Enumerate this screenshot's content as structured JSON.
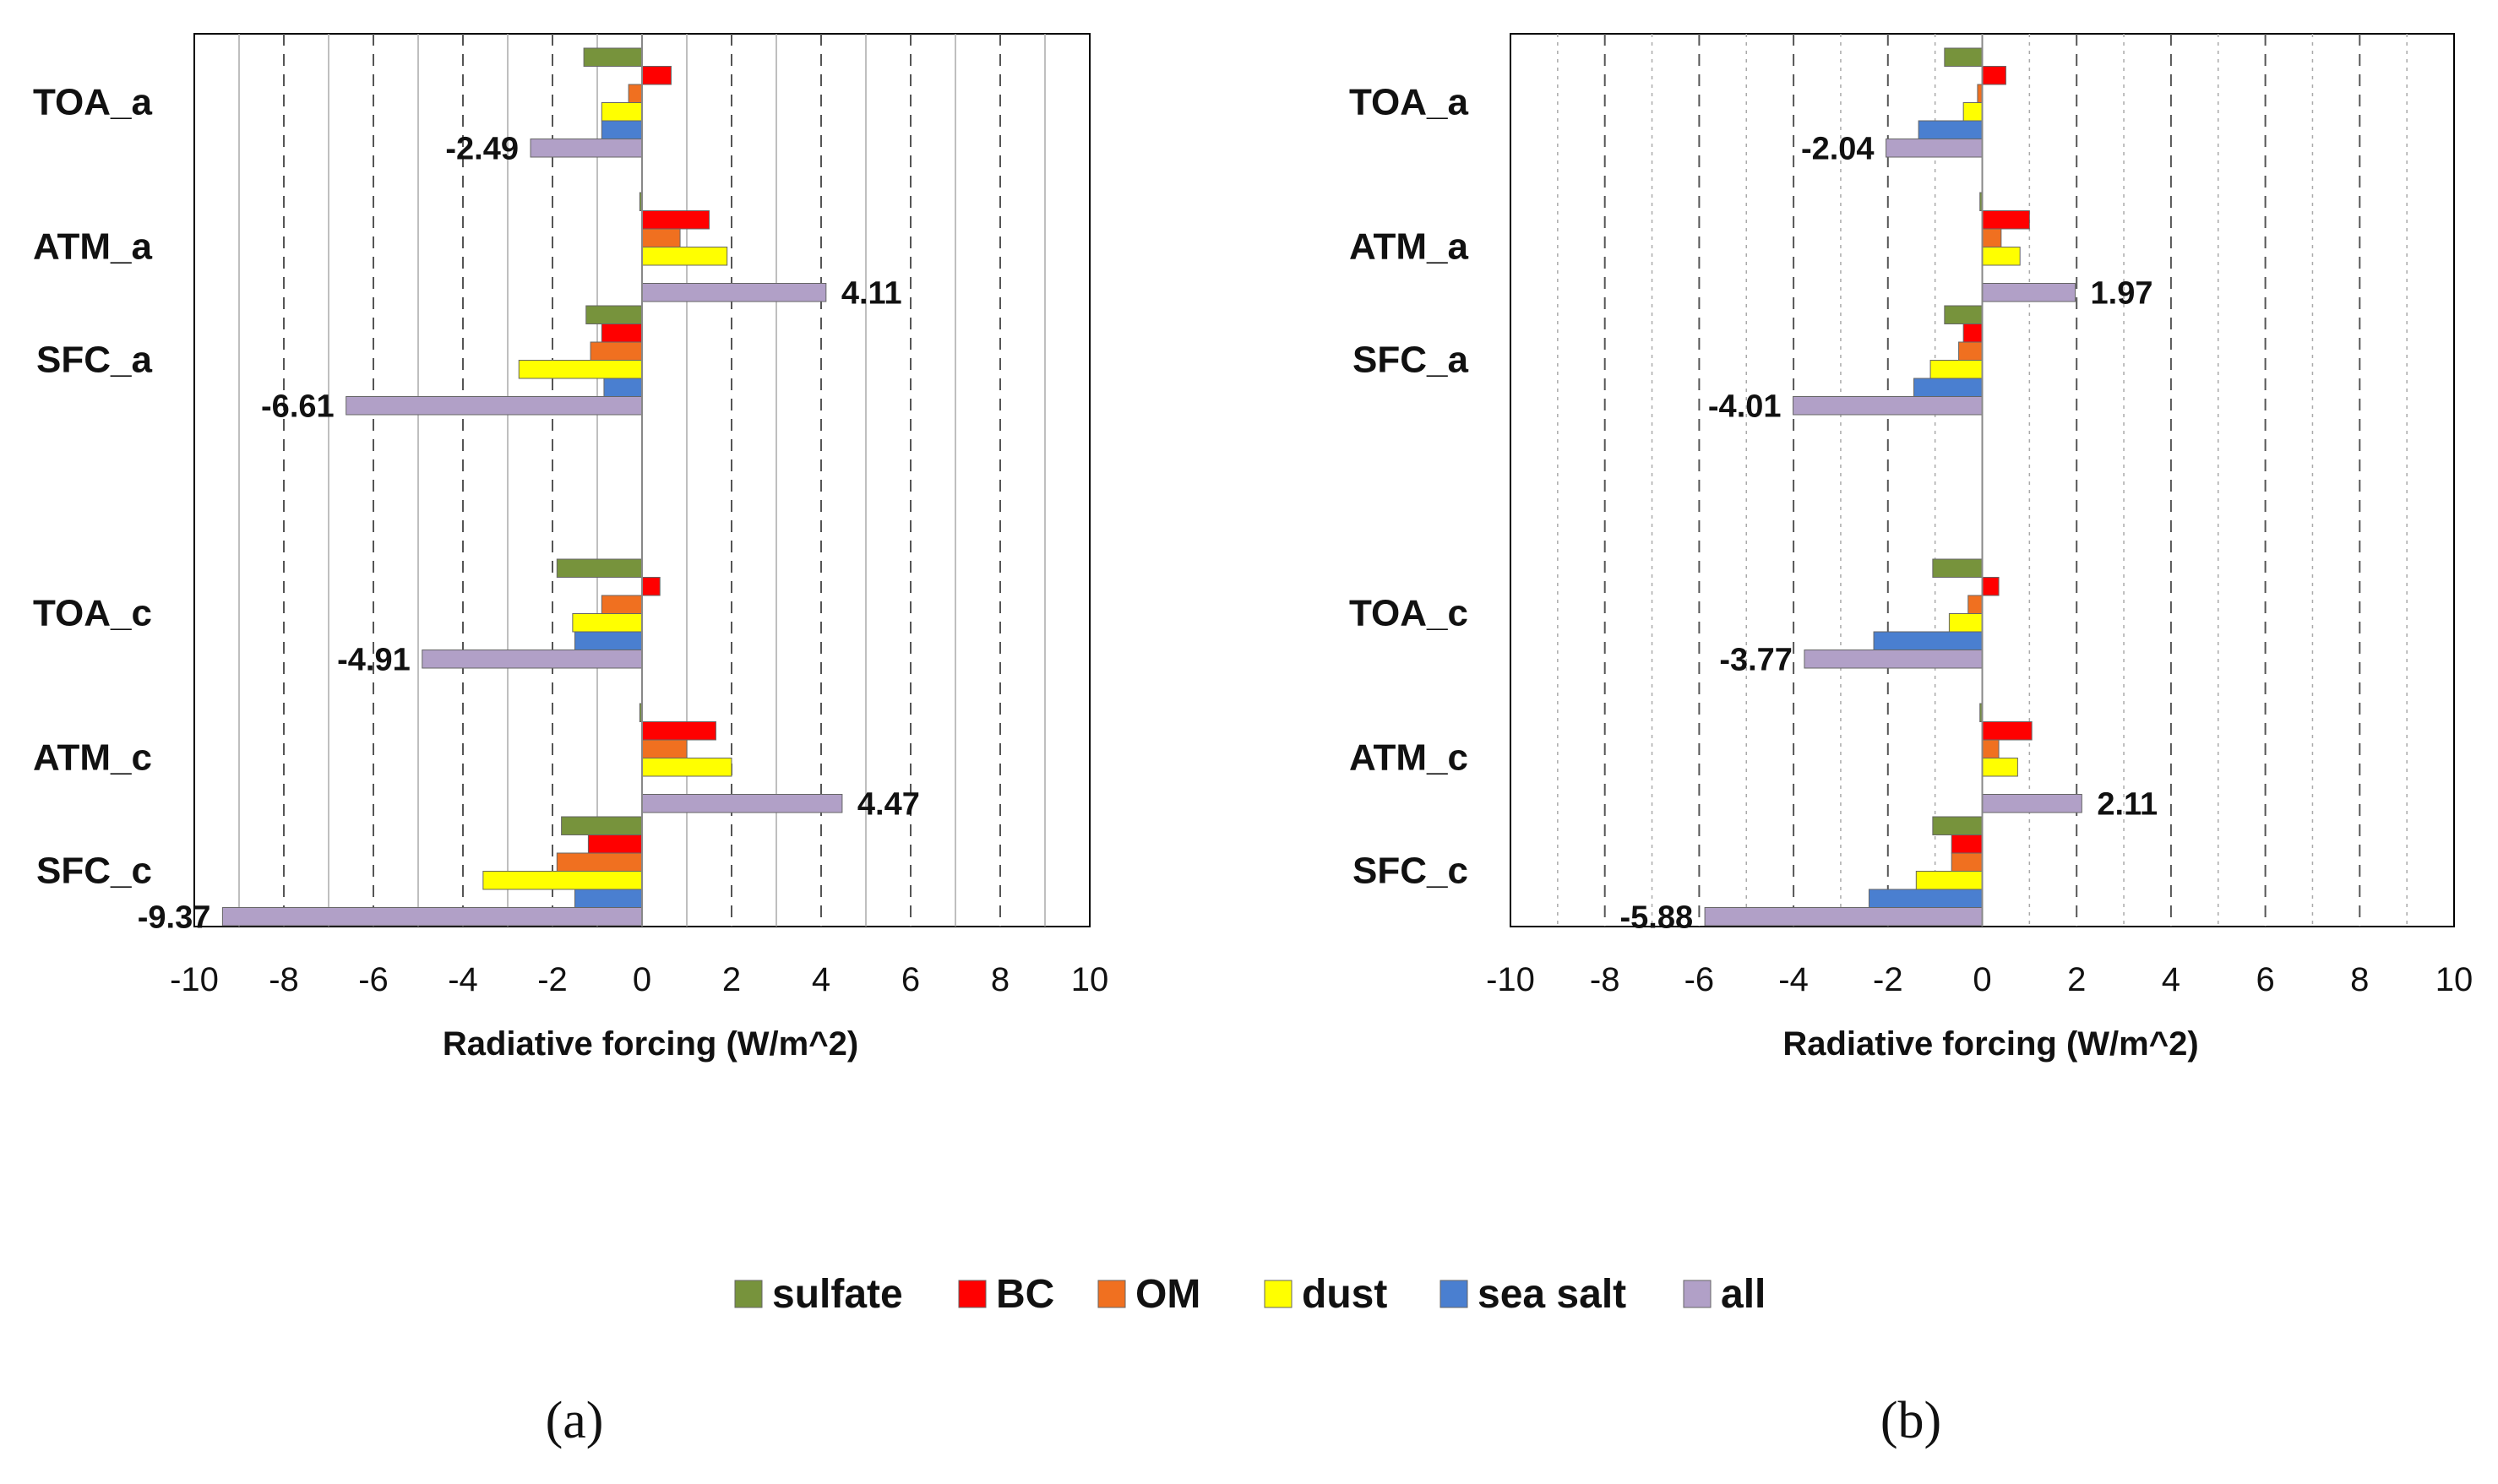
{
  "chart_data": [
    {
      "panel": "a",
      "type": "bar",
      "orientation": "horizontal",
      "categories": [
        "TOA_a",
        "ATM_a",
        "SFC_a",
        "TOA_c",
        "ATM_c",
        "SFC_c"
      ],
      "xlabel": "Radiative forcing (W/m^2)",
      "xlim": [
        -10,
        10
      ],
      "xticks": [
        -10,
        -8,
        -6,
        -4,
        -2,
        0,
        2,
        4,
        6,
        8,
        10
      ],
      "series": [
        {
          "name": "sulfate",
          "values": [
            -1.3,
            -0.05,
            -1.25,
            -1.9,
            -0.05,
            -1.8
          ]
        },
        {
          "name": "BC",
          "values": [
            0.65,
            1.5,
            -0.9,
            0.4,
            1.65,
            -1.2
          ]
        },
        {
          "name": "OM",
          "values": [
            -0.3,
            0.85,
            -1.15,
            -0.9,
            1.0,
            -1.9
          ]
        },
        {
          "name": "dust",
          "values": [
            -0.9,
            1.9,
            -2.75,
            -1.55,
            2.0,
            -3.55
          ]
        },
        {
          "name": "sea salt",
          "values": [
            -0.9,
            0.0,
            -0.85,
            -1.5,
            0.0,
            -1.5
          ]
        },
        {
          "name": "all",
          "values": [
            -2.49,
            4.11,
            -6.61,
            -4.91,
            4.47,
            -9.37
          ]
        }
      ],
      "data_labels": [
        "-2.49",
        "4.11",
        "-6.61",
        "-4.91",
        "4.47",
        "-9.37"
      ],
      "panel_label": "(a)"
    },
    {
      "panel": "b",
      "type": "bar",
      "orientation": "horizontal",
      "categories": [
        "TOA_a",
        "ATM_a",
        "SFC_a",
        "TOA_c",
        "ATM_c",
        "SFC_c"
      ],
      "xlabel": "Radiative forcing (W/m^2)",
      "xlim": [
        -10,
        10
      ],
      "xticks": [
        -10,
        -8,
        -6,
        -4,
        -2,
        0,
        2,
        4,
        6,
        8,
        10
      ],
      "series": [
        {
          "name": "sulfate",
          "values": [
            -0.8,
            -0.05,
            -0.8,
            -1.05,
            -0.05,
            -1.05
          ]
        },
        {
          "name": "BC",
          "values": [
            0.5,
            1.0,
            -0.4,
            0.35,
            1.05,
            -0.65
          ]
        },
        {
          "name": "OM",
          "values": [
            -0.1,
            0.4,
            -0.5,
            -0.3,
            0.35,
            -0.65
          ]
        },
        {
          "name": "dust",
          "values": [
            -0.4,
            0.8,
            -1.1,
            -0.7,
            0.75,
            -1.4
          ]
        },
        {
          "name": "sea salt",
          "values": [
            -1.35,
            0.0,
            -1.45,
            -2.3,
            0.0,
            -2.4
          ]
        },
        {
          "name": "all",
          "values": [
            -2.04,
            1.97,
            -4.01,
            -3.77,
            2.11,
            -5.88
          ]
        }
      ],
      "data_labels": [
        "-2.04",
        "1.97",
        "-4.01",
        "-3.77",
        "2.11",
        "-5.88"
      ],
      "panel_label": "(b)"
    }
  ],
  "legend": {
    "position": "bottom-center",
    "items": [
      {
        "name": "sulfate",
        "color": "#77933c"
      },
      {
        "name": "BC",
        "color": "#ff0000"
      },
      {
        "name": "OM",
        "color": "#f07020"
      },
      {
        "name": "dust",
        "color": "#ffff00"
      },
      {
        "name": "sea salt",
        "color": "#4a7fd0"
      },
      {
        "name": "all",
        "color": "#b1a0c7"
      }
    ]
  }
}
